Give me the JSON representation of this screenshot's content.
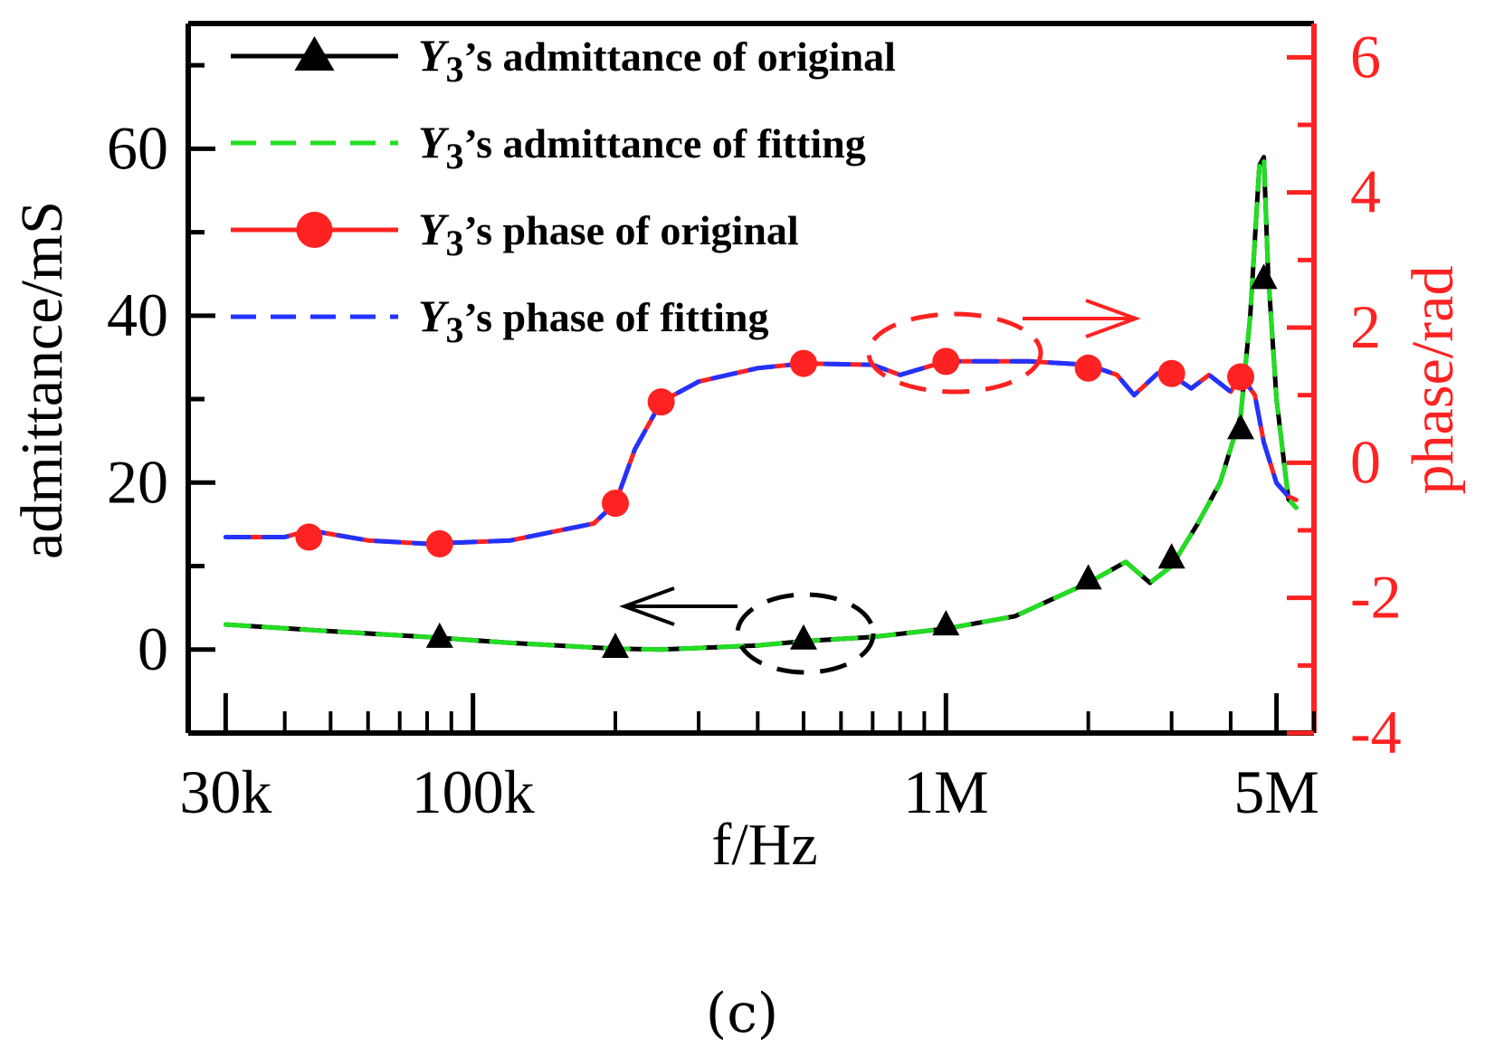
{
  "chart_data": {
    "type": "line",
    "xlabel": "f/Hz",
    "ylabel_left": "admittance/mS",
    "ylabel_right": "phase/rad",
    "x_scale": "log",
    "xlim": [
      25000,
      6000000
    ],
    "ylim_left": [
      -10,
      75
    ],
    "ylim_right": [
      -4,
      6.5
    ],
    "x_ticks": [
      {
        "value": 30000,
        "label": "30k"
      },
      {
        "value": 100000,
        "label": "100k"
      },
      {
        "value": 1000000,
        "label": "1M"
      },
      {
        "value": 5000000,
        "label": "5M"
      }
    ],
    "y_left_ticks": [
      {
        "value": 0,
        "label": "0"
      },
      {
        "value": 20,
        "label": "20"
      },
      {
        "value": 40,
        "label": "40"
      },
      {
        "value": 60,
        "label": "60"
      }
    ],
    "y_right_ticks": [
      {
        "value": -4,
        "label": "-4"
      },
      {
        "value": -2,
        "label": "-2"
      },
      {
        "value": 0,
        "label": "0"
      },
      {
        "value": 2,
        "label": "2"
      },
      {
        "value": 4,
        "label": "4"
      },
      {
        "value": 6,
        "label": "6"
      }
    ],
    "series": [
      {
        "name": "Y3's admittance of original",
        "axis": "left",
        "color": "#000000",
        "style": "solid",
        "marker": "triangle",
        "x": [
          30000,
          50000,
          80000,
          120000,
          200000,
          250000,
          400000,
          500000,
          700000,
          1000000,
          1400000,
          2000000,
          2400000,
          2700000,
          3000000,
          3400000,
          3800000,
          4200000,
          4400000,
          4600000,
          4700000,
          4800000,
          5000000,
          5300000,
          5500000
        ],
        "y": [
          3,
          2.2,
          1.5,
          0.8,
          0.1,
          0,
          0.5,
          1,
          1.5,
          2.5,
          4,
          8,
          10.5,
          8,
          10,
          15,
          20,
          28,
          40,
          58,
          59,
          45,
          30,
          18,
          17
        ],
        "markers_x": [
          85000,
          200000,
          500000,
          1000000,
          2000000,
          3000000,
          4200000,
          4700000
        ],
        "markers_y": [
          1.5,
          0.3,
          1.3,
          3,
          8.5,
          11,
          26.5,
          44.5
        ]
      },
      {
        "name": "Y3's admittance of fitting",
        "axis": "left",
        "color": "#22dd22",
        "style": "dashed",
        "marker": "none",
        "x": [
          30000,
          50000,
          80000,
          120000,
          200000,
          250000,
          400000,
          500000,
          700000,
          1000000,
          1400000,
          2000000,
          2400000,
          2700000,
          3000000,
          3400000,
          3800000,
          4200000,
          4400000,
          4600000,
          4700000,
          4800000,
          5000000,
          5300000,
          5500000
        ],
        "y": [
          3,
          2.2,
          1.5,
          0.8,
          0.1,
          0,
          0.5,
          1,
          1.5,
          2.5,
          4,
          8,
          10.5,
          8,
          10,
          15,
          20,
          28,
          40,
          58,
          59,
          45,
          30,
          18,
          17
        ]
      },
      {
        "name": "Y3's phase of original",
        "axis": "right",
        "color": "#ff2222",
        "style": "solid",
        "marker": "circle",
        "x": [
          30000,
          40000,
          45000,
          60000,
          80000,
          120000,
          180000,
          200000,
          220000,
          250000,
          300000,
          400000,
          500000,
          700000,
          800000,
          1000000,
          1500000,
          2000000,
          2300000,
          2500000,
          2800000,
          3000000,
          3300000,
          3600000,
          4000000,
          4200000,
          4500000,
          4700000,
          5000000,
          5300000,
          5500000
        ],
        "y": [
          -1.1,
          -1.1,
          -1.0,
          -1.15,
          -1.2,
          -1.15,
          -0.9,
          -0.6,
          0.2,
          0.9,
          1.2,
          1.4,
          1.47,
          1.45,
          1.3,
          1.5,
          1.5,
          1.45,
          1.3,
          1.0,
          1.32,
          1.3,
          1.1,
          1.3,
          1.05,
          1.3,
          1.0,
          0.3,
          -0.3,
          -0.5,
          -0.55
        ],
        "markers_x": [
          45000,
          85000,
          200000,
          250000,
          500000,
          1000000,
          2000000,
          3000000,
          4200000
        ],
        "markers_y": [
          -1.1,
          -1.2,
          -0.6,
          0.9,
          1.47,
          1.5,
          1.4,
          1.32,
          1.27
        ]
      },
      {
        "name": "Y3's phase of fitting",
        "axis": "right",
        "color": "#2233ff",
        "style": "dashed",
        "marker": "none",
        "x": [
          30000,
          40000,
          45000,
          60000,
          80000,
          120000,
          180000,
          200000,
          220000,
          250000,
          300000,
          400000,
          500000,
          700000,
          800000,
          1000000,
          1500000,
          2000000,
          2300000,
          2500000,
          2800000,
          3000000,
          3300000,
          3600000,
          4000000,
          4200000,
          4500000,
          4700000,
          5000000,
          5300000,
          5500000
        ],
        "y": [
          -1.1,
          -1.1,
          -1.0,
          -1.15,
          -1.2,
          -1.15,
          -0.9,
          -0.6,
          0.2,
          0.9,
          1.2,
          1.4,
          1.47,
          1.45,
          1.3,
          1.5,
          1.5,
          1.45,
          1.3,
          1.0,
          1.32,
          1.3,
          1.1,
          1.3,
          1.05,
          1.3,
          1.0,
          0.3,
          -0.3,
          -0.5,
          -0.55
        ]
      }
    ],
    "legend": [
      {
        "prefix": "Y",
        "sub": "3",
        "text": "’s admittance of original",
        "color": "#000000",
        "style": "solid",
        "marker": "triangle"
      },
      {
        "prefix": "Y",
        "sub": "3",
        "text": "’s admittance of fitting",
        "color": "#22dd22",
        "style": "dashed",
        "marker": "none"
      },
      {
        "prefix": "Y",
        "sub": "3",
        "text": "’s phase of original",
        "color": "#ff2222",
        "style": "solid",
        "marker": "circle"
      },
      {
        "prefix": "Y",
        "sub": "3",
        "text": "’s phase of fitting",
        "color": "#2233ff",
        "style": "dashed",
        "marker": "none"
      }
    ],
    "annotations": [
      {
        "type": "ellipse",
        "color": "#000000",
        "meaning": "admittance curves read on left axis",
        "arrow": "left"
      },
      {
        "type": "ellipse",
        "color": "#ff2222",
        "meaning": "phase curves read on right axis",
        "arrow": "right"
      }
    ]
  },
  "caption": "(c)",
  "colors": {
    "right_axis": "#ff2222",
    "left_axis": "#000000"
  }
}
